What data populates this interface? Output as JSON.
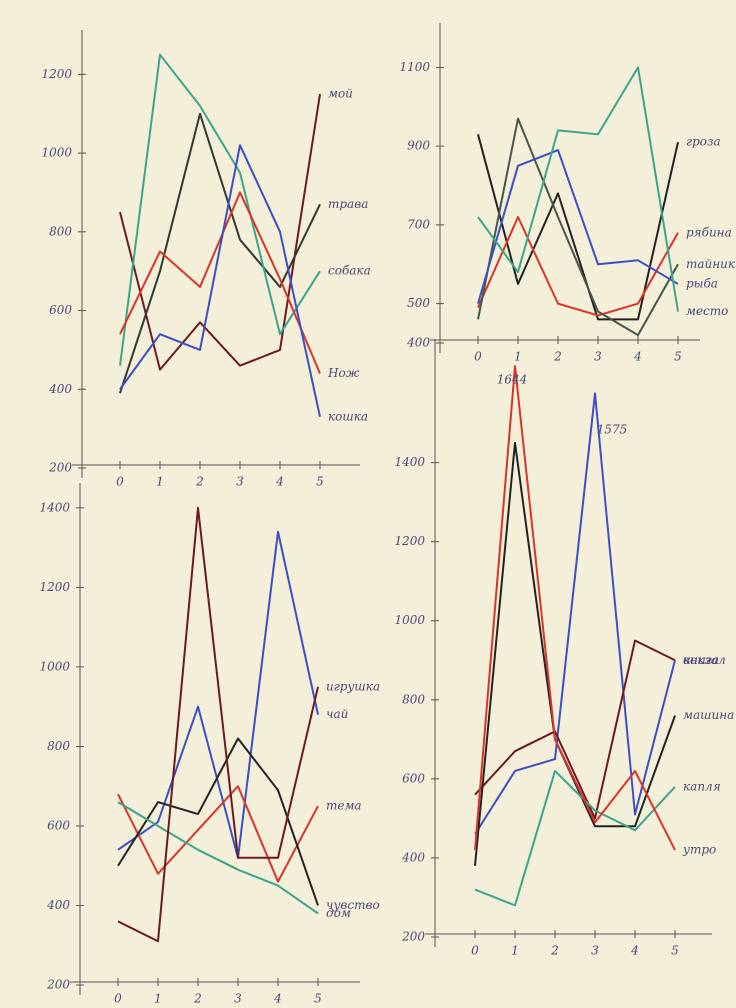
{
  "chart_data": [
    {
      "type": "line",
      "categories": [
        "0",
        "1",
        "2",
        "3",
        "4",
        "5"
      ],
      "ylim": [
        200,
        1300
      ],
      "yticks": [
        200,
        400,
        600,
        800,
        1000,
        1200
      ],
      "series": [
        {
          "name": "мой",
          "color": "#6b1a22",
          "values": [
            850,
            450,
            570,
            460,
            500,
            1150
          ]
        },
        {
          "name": "трава",
          "color": "#2f3a33",
          "values": [
            390,
            700,
            1100,
            780,
            660,
            870
          ]
        },
        {
          "name": "собака",
          "color": "#3aa58a",
          "values": [
            460,
            1250,
            1120,
            950,
            540,
            700
          ]
        },
        {
          "name": "Нож",
          "color": "#d8352a",
          "values": [
            540,
            750,
            660,
            900,
            680,
            440
          ]
        },
        {
          "name": "кошка",
          "color": "#3b4fc4",
          "values": [
            400,
            540,
            500,
            1020,
            800,
            330
          ]
        }
      ]
    },
    {
      "type": "line",
      "categories": [
        "0",
        "1",
        "2",
        "3",
        "4",
        "5"
      ],
      "ylim": [
        400,
        1200
      ],
      "yticks": [
        400,
        500,
        700,
        900,
        1100
      ],
      "series": [
        {
          "name": "гроза",
          "color": "#222222",
          "values": [
            930,
            550,
            780,
            460,
            460,
            910
          ]
        },
        {
          "name": "рябина",
          "color": "#d8352a",
          "values": [
            490,
            720,
            500,
            470,
            500,
            680
          ]
        },
        {
          "name": "тайник",
          "color": "#44574a",
          "values": [
            460,
            970,
            720,
            480,
            420,
            600
          ]
        },
        {
          "name": "рыба",
          "color": "#3b4fc4",
          "values": [
            500,
            850,
            890,
            600,
            610,
            550
          ]
        },
        {
          "name": "место",
          "color": "#3aa58a",
          "values": [
            720,
            580,
            940,
            930,
            1100,
            480
          ]
        }
      ]
    },
    {
      "type": "line",
      "categories": [
        "0",
        "1",
        "2",
        "3",
        "4",
        "5"
      ],
      "ylim": [
        200,
        1450
      ],
      "yticks": [
        200,
        400,
        600,
        800,
        1000,
        1200,
        1400
      ],
      "series": [
        {
          "name": "чай",
          "color": "#3b4fc4",
          "values": [
            540,
            610,
            900,
            520,
            1340,
            880
          ]
        },
        {
          "name": "тема",
          "color": "#d8352a",
          "values": [
            680,
            480,
            590,
            700,
            460,
            650
          ]
        },
        {
          "name": "чувство",
          "color": "#222222",
          "values": [
            500,
            660,
            630,
            820,
            690,
            400
          ]
        },
        {
          "name": "дом",
          "color": "#3aa58a",
          "values": [
            660,
            600,
            540,
            490,
            450,
            380
          ]
        },
        {
          "name": "игрушка",
          "color": "#6b1a22",
          "values": [
            360,
            310,
            1400,
            520,
            520,
            950
          ]
        }
      ]
    },
    {
      "type": "line",
      "categories": [
        "0",
        "1",
        "2",
        "3",
        "4",
        "5"
      ],
      "ylim": [
        200,
        1700
      ],
      "yticks": [
        200,
        400,
        600,
        800,
        1000,
        1200,
        1400
      ],
      "annotations": [
        "1644",
        "1575"
      ],
      "series": [
        {
          "name": "вокзал",
          "color": "#3b4fc4",
          "values": [
            460,
            620,
            650,
            1575,
            510,
            900
          ]
        },
        {
          "name": "книга",
          "color": "#6b1a22",
          "values": [
            560,
            670,
            720,
            500,
            950,
            900
          ]
        },
        {
          "name": "машина",
          "color": "#222222",
          "values": [
            380,
            1450,
            700,
            480,
            480,
            760
          ]
        },
        {
          "name": "капля",
          "color": "#3aa58a",
          "values": [
            320,
            280,
            620,
            520,
            470,
            580
          ]
        },
        {
          "name": "утро",
          "color": "#d8352a",
          "values": [
            420,
            1644,
            700,
            490,
            620,
            420
          ]
        }
      ]
    }
  ]
}
